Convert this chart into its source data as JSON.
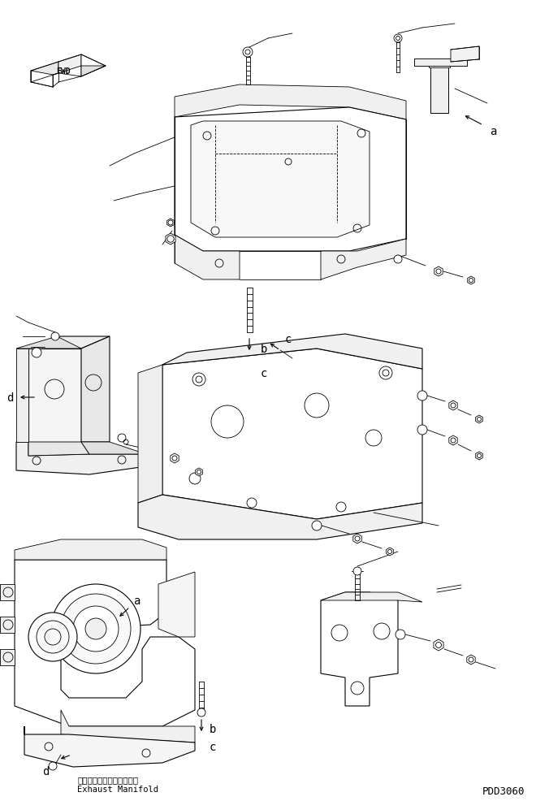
{
  "bg_color": "#ffffff",
  "line_color": "#000000",
  "fig_width": 6.76,
  "fig_height": 9.87,
  "dpi": 100,
  "watermark": "PDD3060",
  "exhaust_jp": "エキゾーストマニホールド",
  "exhaust_en": "Exhaust Manifold"
}
